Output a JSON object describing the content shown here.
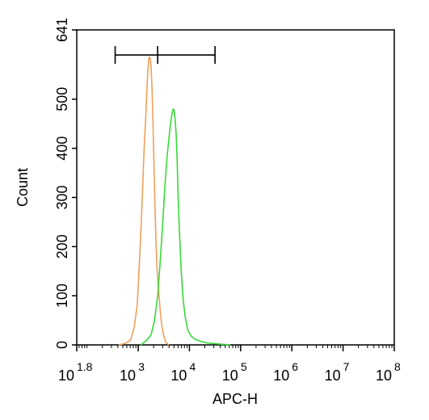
{
  "chart_data": {
    "type": "line",
    "title": "",
    "xlabel": "APC-H",
    "ylabel": "Count",
    "x_scale": "log10",
    "xlim": [
      1.8,
      8
    ],
    "ylim": [
      0,
      641
    ],
    "x_ticks": [
      {
        "base": "10",
        "exp": "1.8",
        "value": 1.8
      },
      {
        "base": "10",
        "exp": "3",
        "value": 3
      },
      {
        "base": "10",
        "exp": "4",
        "value": 4
      },
      {
        "base": "10",
        "exp": "5",
        "value": 5
      },
      {
        "base": "10",
        "exp": "6",
        "value": 6
      },
      {
        "base": "10",
        "exp": "7",
        "value": 7
      },
      {
        "base": "10",
        "exp": "8",
        "value": 8
      }
    ],
    "y_ticks": [
      {
        "label": "0",
        "value": 0
      },
      {
        "label": "100",
        "value": 100
      },
      {
        "label": "200",
        "value": 200
      },
      {
        "label": "300",
        "value": 300
      },
      {
        "label": "400",
        "value": 400
      },
      {
        "label": "500",
        "value": 500
      },
      {
        "label": "641",
        "value": 641
      }
    ],
    "gate": {
      "start_log": 2.55,
      "mid_log": 3.38,
      "end_log": 4.5,
      "y": 590
    },
    "series": [
      {
        "color": "#f0a05a",
        "x_log": [
          2.62,
          2.75,
          2.85,
          2.92,
          2.98,
          3.02,
          3.06,
          3.09,
          3.12,
          3.15,
          3.17,
          3.19,
          3.21,
          3.23,
          3.25,
          3.27,
          3.29,
          3.31,
          3.33,
          3.35,
          3.37,
          3.4,
          3.43,
          3.46,
          3.5,
          3.54,
          3.6
        ],
        "y": [
          0,
          3,
          10,
          35,
          80,
          160,
          250,
          330,
          410,
          470,
          520,
          560,
          585,
          585,
          570,
          520,
          450,
          360,
          270,
          200,
          150,
          110,
          70,
          40,
          18,
          5,
          0
        ]
      },
      {
        "color": "#39d939",
        "x_log": [
          3.05,
          3.15,
          3.25,
          3.32,
          3.38,
          3.43,
          3.48,
          3.52,
          3.56,
          3.6,
          3.63,
          3.66,
          3.68,
          3.7,
          3.72,
          3.74,
          3.76,
          3.78,
          3.81,
          3.84,
          3.88,
          3.92,
          3.97,
          4.03,
          4.1,
          4.2,
          4.35,
          4.55,
          4.8
        ],
        "y": [
          0,
          8,
          20,
          50,
          100,
          170,
          250,
          320,
          380,
          420,
          450,
          470,
          480,
          478,
          460,
          430,
          380,
          300,
          220,
          150,
          90,
          55,
          30,
          18,
          12,
          8,
          4,
          2,
          0
        ]
      }
    ]
  }
}
